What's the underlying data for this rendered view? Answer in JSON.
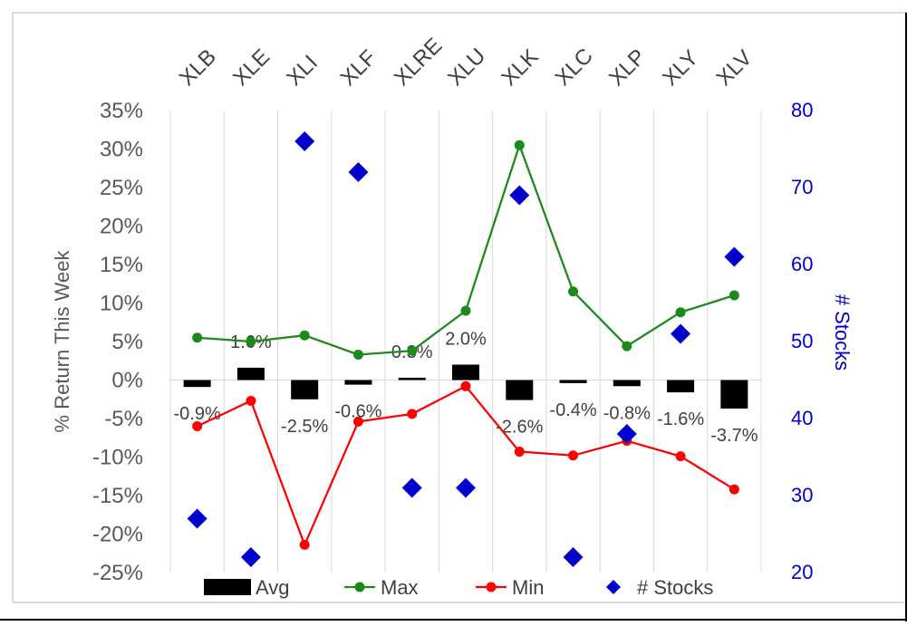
{
  "chart_data": {
    "type": "bar",
    "categories": [
      "XLB",
      "XLE",
      "XLI",
      "XLF",
      "XLRE",
      "XLU",
      "XLK",
      "XLC",
      "XLP",
      "XLY",
      "XLV"
    ],
    "ylabel": "% Return This Week",
    "y2label": "# Stocks",
    "ylim": [
      -25,
      35
    ],
    "y2lim": [
      20,
      80
    ],
    "y_ticks": [
      "35%",
      "30%",
      "25%",
      "20%",
      "15%",
      "10%",
      "5%",
      "0%",
      "-5%",
      "-10%",
      "-15%",
      "-20%",
      "-25%"
    ],
    "y2_ticks": [
      "80",
      "70",
      "60",
      "50",
      "40",
      "30",
      "20"
    ],
    "grid": "vertical",
    "legend_position": "bottom",
    "series": [
      {
        "name": "Avg",
        "kind": "bar",
        "color": "#000000",
        "values": [
          -0.9,
          1.6,
          -2.5,
          -0.6,
          0.3,
          2.0,
          -2.6,
          -0.4,
          -0.8,
          -1.6,
          -3.7
        ],
        "labels": [
          "-0.9%",
          "1.6%",
          "-2.5%",
          "-0.6%",
          "0.3%",
          "2.0%",
          "-2.6%",
          "-0.4%",
          "-0.8%",
          "-1.6%",
          "-3.7%"
        ]
      },
      {
        "name": "Max",
        "kind": "line",
        "color": "#1a8a1a",
        "values": [
          5.5,
          5.0,
          5.8,
          3.3,
          3.8,
          9.0,
          30.5,
          11.5,
          4.4,
          8.8,
          11.0
        ]
      },
      {
        "name": "Min",
        "kind": "line",
        "color": "#ff0000",
        "values": [
          -6.0,
          -2.7,
          -21.4,
          -5.4,
          -4.4,
          -0.8,
          -9.3,
          -9.8,
          -7.9,
          -9.9,
          -14.2
        ]
      },
      {
        "name": "# Stocks",
        "kind": "scatter",
        "axis": "y2",
        "color": "#0000cc",
        "values": [
          27,
          22,
          76,
          72,
          31,
          31,
          69,
          22,
          38,
          51,
          61
        ]
      }
    ]
  }
}
